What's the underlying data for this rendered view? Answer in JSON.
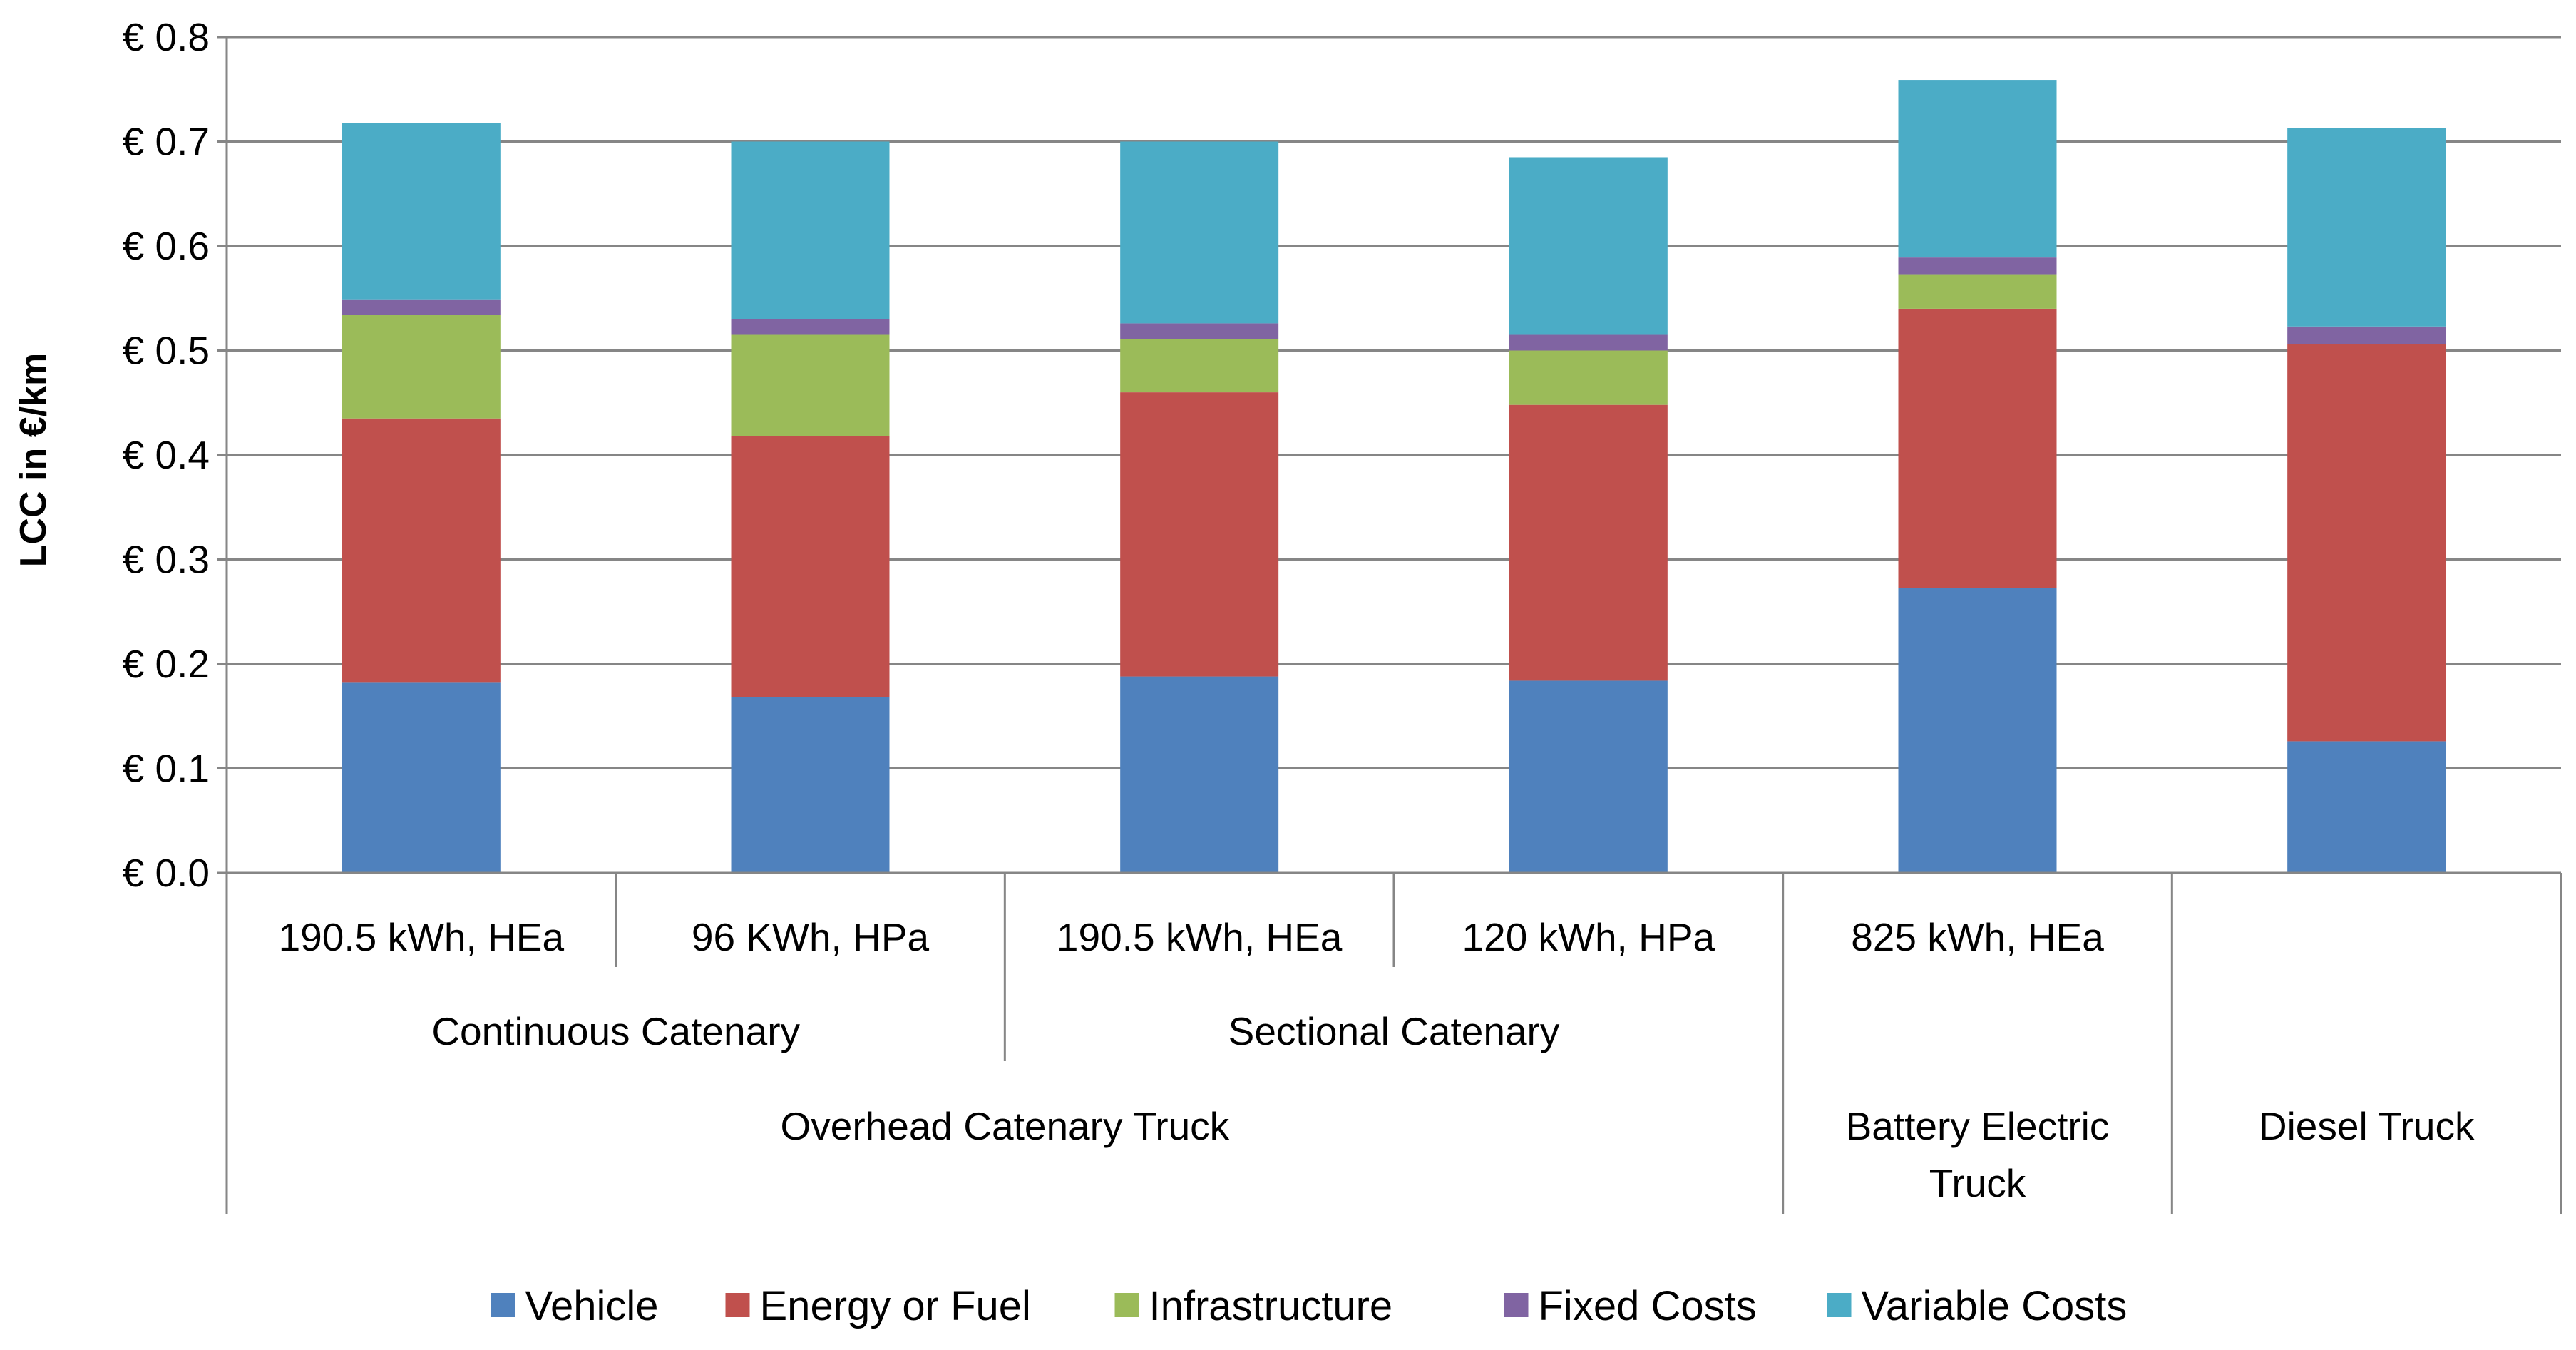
{
  "chart_data": {
    "type": "bar",
    "stacked": true,
    "title": "",
    "xlabel": "",
    "ylabel": "LCC in €/km",
    "ylim": [
      0,
      0.8
    ],
    "yticks": [
      0,
      0.1,
      0.2,
      0.3,
      0.4,
      0.5,
      0.6,
      0.7,
      0.8
    ],
    "ytick_labels": [
      "€ 0.0",
      "€ 0.1",
      "€ 0.2",
      "€ 0.3",
      "€ 0.4",
      "€ 0.5",
      "€ 0.6",
      "€ 0.7",
      "€ 0.8"
    ],
    "grid": true,
    "legend_position": "bottom",
    "categories": [
      "190.5 kWh, HEa",
      "96 KWh, HPa",
      "190.5 kWh, HEa",
      "120 kWh, HPa",
      "825 kWh, HEa",
      ""
    ],
    "category_groups": [
      {
        "label": "Continuous Catenary",
        "span": [
          0,
          1
        ]
      },
      {
        "label": "Sectional Catenary",
        "span": [
          2,
          3
        ]
      }
    ],
    "category_supergroups": [
      {
        "label": "Overhead Catenary Truck",
        "span": [
          0,
          3
        ]
      },
      {
        "label": "Battery Electric Truck",
        "span": [
          4,
          4
        ]
      },
      {
        "label": "Diesel Truck",
        "span": [
          5,
          5
        ]
      }
    ],
    "series": [
      {
        "name": "Vehicle",
        "color": "#4F81BD",
        "values": [
          0.182,
          0.168,
          0.188,
          0.184,
          0.273,
          0.126
        ]
      },
      {
        "name": "Energy or Fuel",
        "color": "#C0504D",
        "values": [
          0.253,
          0.25,
          0.272,
          0.264,
          0.267,
          0.38
        ]
      },
      {
        "name": "Infrastructure",
        "color": "#9BBB59",
        "values": [
          0.099,
          0.097,
          0.051,
          0.052,
          0.033,
          0.0
        ]
      },
      {
        "name": "Fixed Costs",
        "color": "#8064A2",
        "values": [
          0.015,
          0.015,
          0.015,
          0.015,
          0.016,
          0.017
        ]
      },
      {
        "name": "Variable Costs",
        "color": "#4BACC6",
        "values": [
          0.169,
          0.17,
          0.174,
          0.17,
          0.17,
          0.19
        ]
      }
    ],
    "gridline_color": "#868686",
    "axis_color": "#868686"
  }
}
